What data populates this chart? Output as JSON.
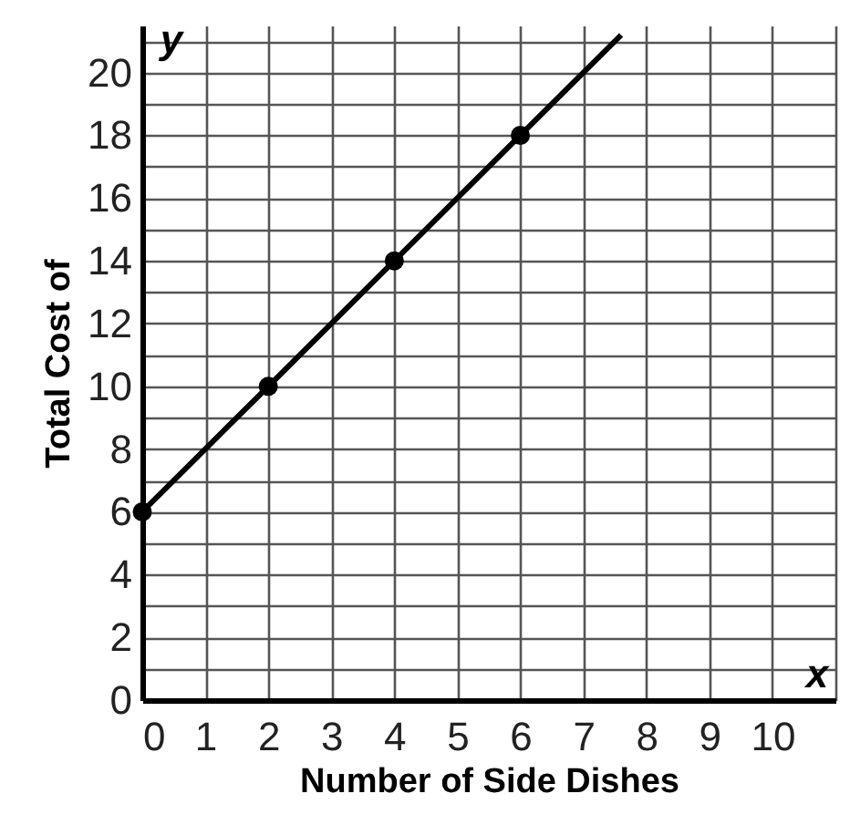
{
  "chart_data": {
    "type": "line",
    "xlabel": "Number of Side Dishes",
    "ylabel": "Total Cost of",
    "annotations": [
      "y",
      "x"
    ],
    "xlim": [
      0,
      11
    ],
    "ylim": [
      0,
      21.5
    ],
    "xticks": [
      0,
      1,
      2,
      3,
      4,
      5,
      6,
      7,
      8,
      9,
      10,
      {
        "value": 11,
        "label": null
      }
    ],
    "yticks": [
      0,
      {
        "value": 1,
        "label": null
      },
      2,
      {
        "value": 3,
        "label": null
      },
      4,
      {
        "value": 5,
        "label": null
      },
      6,
      {
        "value": 7,
        "label": null
      },
      8,
      {
        "value": 9,
        "label": null
      },
      10,
      {
        "value": 11,
        "label": null
      },
      12,
      {
        "value": 13,
        "label": null
      },
      14,
      {
        "value": 15,
        "label": null
      },
      16,
      {
        "value": 17,
        "label": null
      },
      18,
      {
        "value": 19,
        "label": null
      },
      20,
      {
        "value": 21,
        "label": null
      }
    ],
    "grid": true,
    "series": [
      {
        "type": "line",
        "color": "#000000",
        "marker": "none",
        "x": [
          0,
          2,
          4,
          6,
          7.6
        ],
        "values": [
          6,
          10,
          14,
          18,
          21.2
        ]
      },
      {
        "type": "scatter",
        "color": "#000000",
        "marker": "circle",
        "x": [
          0,
          2,
          4,
          6
        ],
        "values": [
          6,
          10,
          14,
          18
        ]
      }
    ]
  }
}
